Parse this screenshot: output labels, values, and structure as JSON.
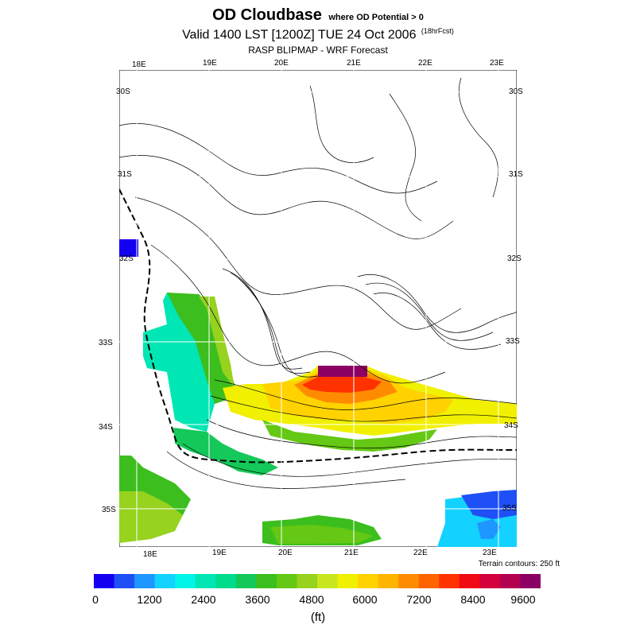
{
  "title": {
    "main": "OD Cloudbase",
    "sub": "where OD Potential > 0",
    "valid": "Valid 1400 LST [1200Z] TUE 24 Oct 2006",
    "forecast_tag": "(18hrFcst)",
    "model": "RASP BLIPMAP - WRF Forecast"
  },
  "map": {
    "lon_ticks_top": [
      "18E",
      "19E",
      "20E",
      "21E",
      "22E",
      "23E"
    ],
    "lon_ticks_bottom": [
      "18E",
      "19E",
      "20E",
      "21E",
      "22E",
      "23E"
    ],
    "lat_ticks_left": [
      "30S",
      "31S",
      "32S",
      "33S",
      "34S",
      "35S"
    ],
    "lat_ticks_right": [
      "30S",
      "31S",
      "32S",
      "33S",
      "34S",
      "35S"
    ],
    "terrain_note": "Terrain contours: 250 ft"
  },
  "colorbar": {
    "labels": [
      "0",
      "1200",
      "2400",
      "3600",
      "4800",
      "6000",
      "7200",
      "8400",
      "9600"
    ],
    "units": "(ft)",
    "colors": [
      "#1400f0",
      "#1e50f5",
      "#1e96ff",
      "#14d2ff",
      "#00f5e6",
      "#00e6b4",
      "#00dc8c",
      "#14c85a",
      "#3cbe1e",
      "#64c814",
      "#96d21e",
      "#c8e61e",
      "#f0f000",
      "#ffd200",
      "#ffb400",
      "#ff8c00",
      "#ff6400",
      "#ff3200",
      "#f00a14",
      "#d2003c",
      "#b40050",
      "#8c0064"
    ]
  }
}
